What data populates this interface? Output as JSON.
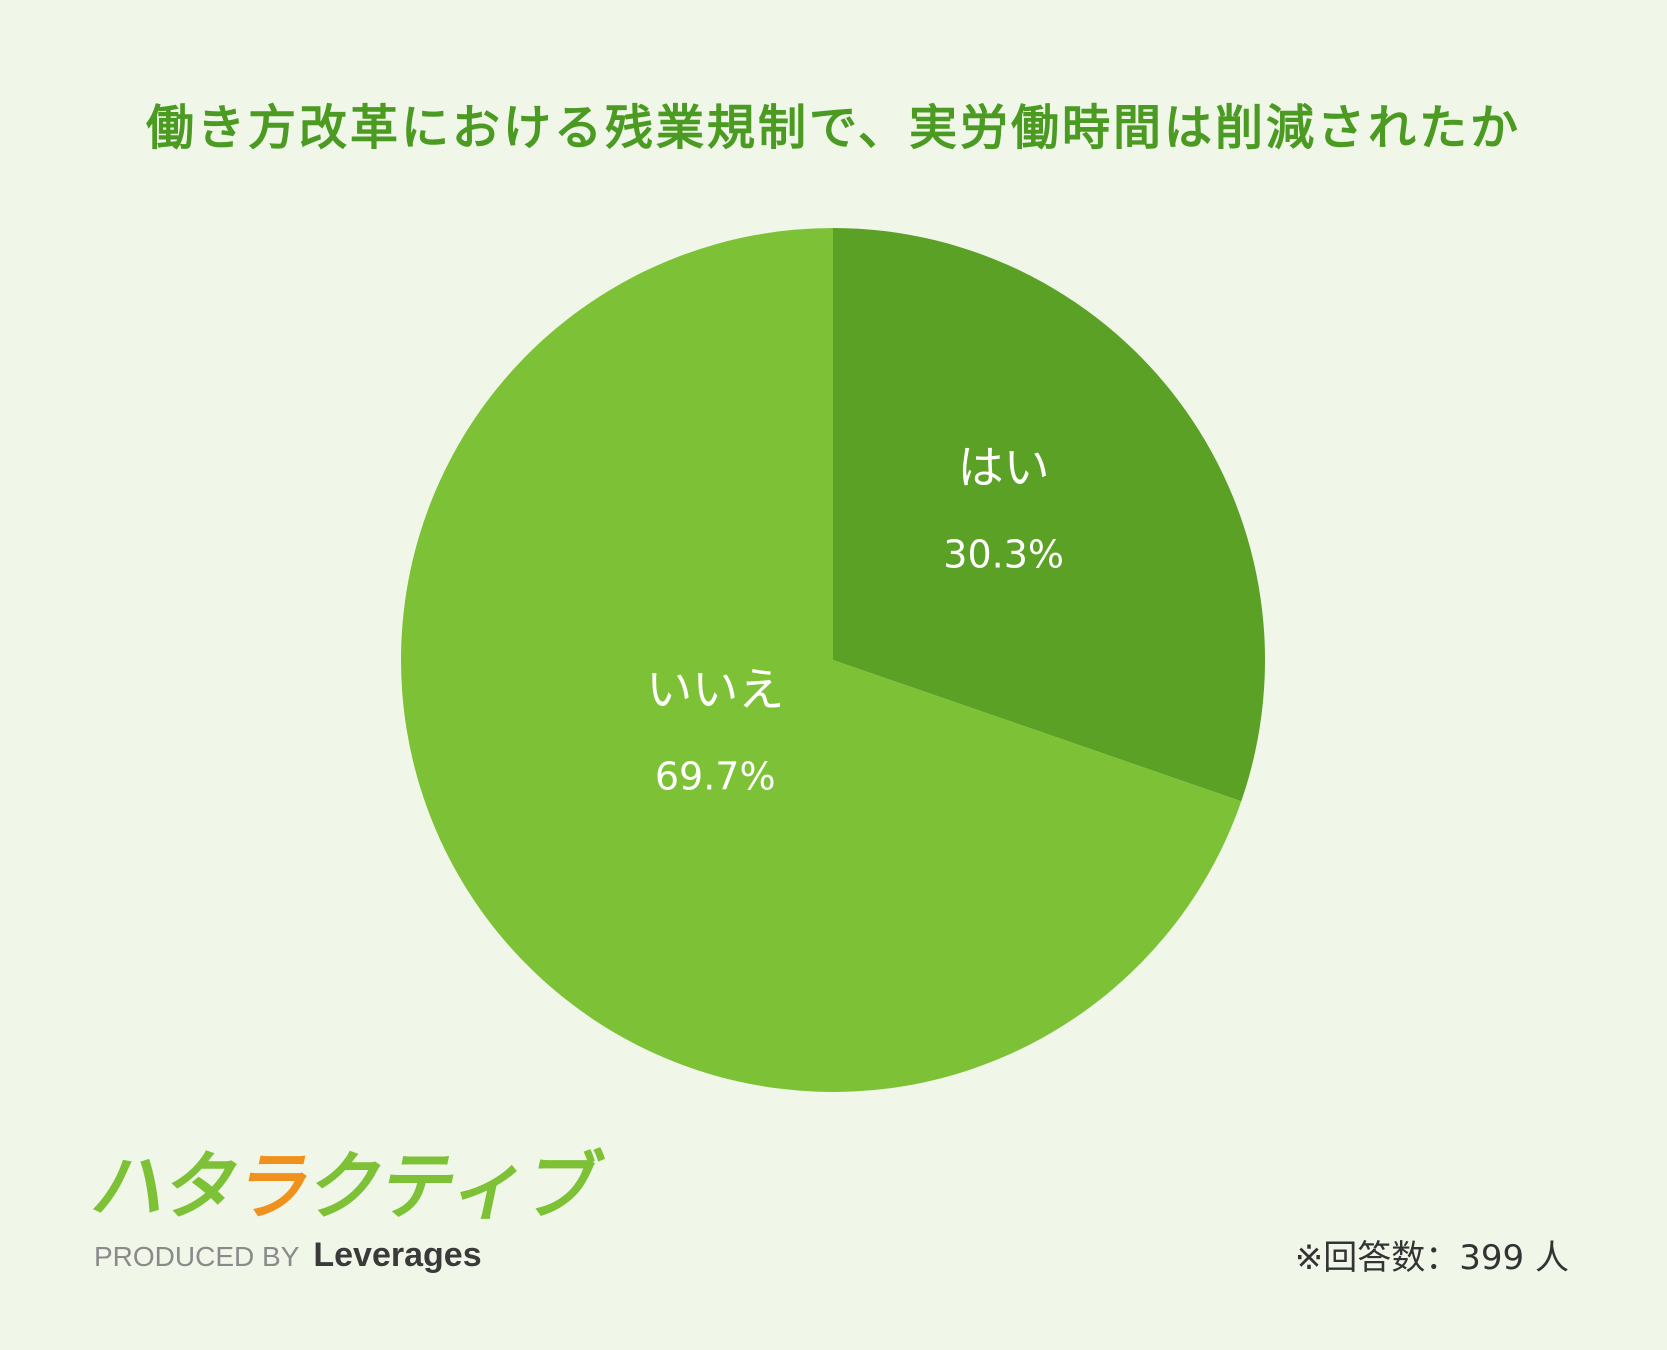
{
  "chart_data": {
    "type": "pie",
    "title": "働き方改革における残業規制で、実労働時間は削減されたか",
    "slices": [
      {
        "label": "はい",
        "value": 30.3,
        "display": "30.3%",
        "color": "#5aa125"
      },
      {
        "label": "いいえ",
        "value": 69.7,
        "display": "69.7%",
        "color": "#7dc236"
      }
    ],
    "start_angle_deg": 0,
    "direction": "clockwise",
    "legend": "none"
  },
  "logo": {
    "glyphs": [
      {
        "char": "ハ",
        "color": "#7dc236"
      },
      {
        "char": "タ",
        "color": "#7dc236"
      },
      {
        "char": "ラ",
        "color": "#f0911e"
      },
      {
        "char": "ク",
        "color": "#7dc236"
      },
      {
        "char": "テ",
        "color": "#7dc236"
      },
      {
        "char": "ィ",
        "color": "#7dc236"
      },
      {
        "char": "ブ",
        "color": "#7dc236"
      }
    ],
    "produced_by": "PRODUCED BY",
    "company": "Leverages"
  },
  "footnote": "※回答数：399 人"
}
